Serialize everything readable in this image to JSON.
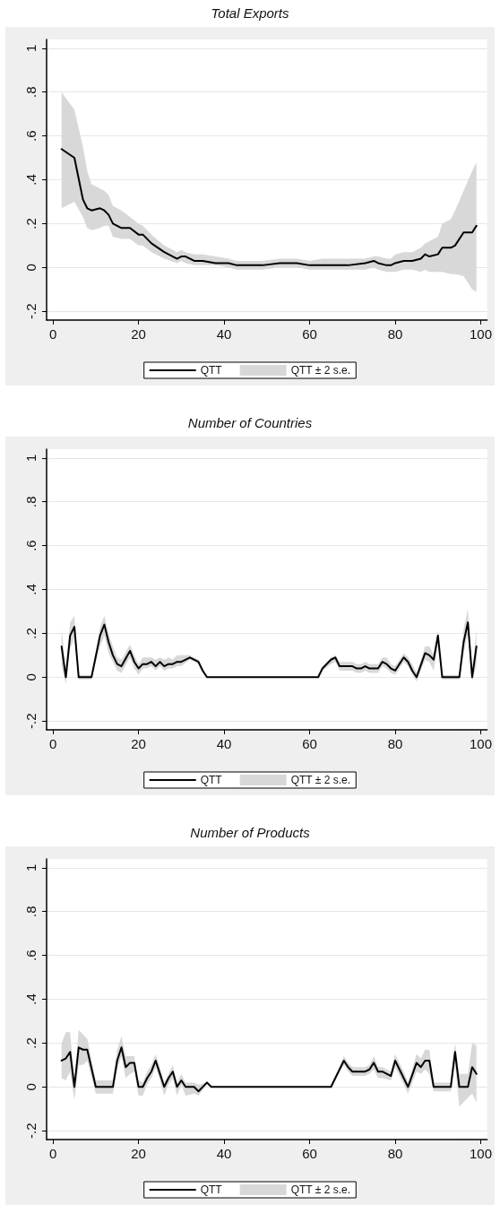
{
  "chart_data": [
    {
      "type": "line",
      "title": "Total Exports",
      "annotations": [
        "QTT ± 2 s.e."
      ],
      "xlim": [
        -1.5,
        101.5
      ],
      "xticks": [
        0,
        20,
        40,
        60,
        80,
        100
      ],
      "ylim": [
        -0.24,
        1.04
      ],
      "yticks": [
        {
          "value": -0.2,
          "label": "-.2"
        },
        {
          "value": 0,
          "label": "0"
        },
        {
          "value": 0.2,
          "label": ".2"
        },
        {
          "value": 0.4,
          "label": ".4"
        },
        {
          "value": 0.6,
          "label": ".6"
        },
        {
          "value": 0.8,
          "label": ".8"
        },
        {
          "value": 1,
          "label": "1"
        }
      ],
      "grid": "y",
      "legend": "bottom",
      "marker": "none",
      "line_style": "solid",
      "series": [
        {
          "name": "QTT",
          "color": "#000000",
          "x": [
            2,
            5,
            7,
            8,
            9,
            11,
            12,
            13,
            14,
            16,
            18,
            20,
            21,
            23,
            26,
            29,
            30,
            31,
            33,
            35,
            38,
            41,
            43,
            44,
            47,
            49,
            53,
            55,
            57,
            60,
            63,
            66,
            69,
            73,
            75,
            76,
            78,
            79,
            80,
            82,
            84,
            86,
            87,
            88,
            90,
            91,
            93,
            94,
            96,
            98,
            99
          ],
          "values": [
            0.54,
            0.5,
            0.31,
            0.27,
            0.26,
            0.27,
            0.26,
            0.24,
            0.2,
            0.18,
            0.18,
            0.15,
            0.15,
            0.11,
            0.07,
            0.04,
            0.05,
            0.05,
            0.03,
            0.03,
            0.02,
            0.02,
            0.01,
            0.01,
            0.01,
            0.01,
            0.02,
            0.02,
            0.02,
            0.01,
            0.01,
            0.01,
            0.01,
            0.02,
            0.03,
            0.02,
            0.01,
            0.01,
            0.02,
            0.03,
            0.03,
            0.04,
            0.06,
            0.05,
            0.06,
            0.09,
            0.09,
            0.1,
            0.16,
            0.16,
            0.19
          ],
          "upper": [
            0.8,
            0.72,
            0.55,
            0.44,
            0.38,
            0.36,
            0.35,
            0.33,
            0.28,
            0.26,
            0.23,
            0.2,
            0.19,
            0.15,
            0.1,
            0.07,
            0.08,
            0.07,
            0.06,
            0.06,
            0.05,
            0.04,
            0.03,
            0.03,
            0.03,
            0.03,
            0.04,
            0.04,
            0.04,
            0.03,
            0.04,
            0.04,
            0.04,
            0.04,
            0.05,
            0.05,
            0.04,
            0.04,
            0.06,
            0.07,
            0.07,
            0.09,
            0.11,
            0.12,
            0.14,
            0.2,
            0.22,
            0.26,
            0.35,
            0.44,
            0.48
          ],
          "lower": [
            0.27,
            0.3,
            0.23,
            0.18,
            0.17,
            0.18,
            0.19,
            0.19,
            0.14,
            0.13,
            0.13,
            0.1,
            0.1,
            0.07,
            0.04,
            0.02,
            0.03,
            0.02,
            0.01,
            0.01,
            0.01,
            0,
            -0.01,
            -0.01,
            -0.01,
            -0.01,
            0,
            0,
            0,
            -0.01,
            -0.01,
            -0.01,
            -0.01,
            -0.01,
            0,
            -0.01,
            -0.02,
            -0.02,
            -0.02,
            -0.01,
            -0.01,
            -0.02,
            -0.01,
            -0.02,
            -0.02,
            -0.02,
            -0.03,
            -0.03,
            -0.04,
            -0.1,
            -0.11
          ]
        }
      ]
    },
    {
      "type": "line",
      "title": "Number of Countries",
      "annotations": [
        "QTT ± 2 s.e."
      ],
      "xlim": [
        -1.5,
        101.5
      ],
      "xticks": [
        0,
        20,
        40,
        60,
        80,
        100
      ],
      "ylim": [
        -0.24,
        1.04
      ],
      "yticks": [
        {
          "value": -0.2,
          "label": "-.2"
        },
        {
          "value": 0,
          "label": "0"
        },
        {
          "value": 0.2,
          "label": ".2"
        },
        {
          "value": 0.4,
          "label": ".4"
        },
        {
          "value": 0.6,
          "label": ".6"
        },
        {
          "value": 0.8,
          "label": ".8"
        },
        {
          "value": 1,
          "label": "1"
        }
      ],
      "grid": "y",
      "legend": "bottom",
      "marker": "none",
      "line_style": "solid",
      "series": [
        {
          "name": "QTT",
          "color": "#000000",
          "x": [
            2,
            3,
            4,
            5,
            6,
            9,
            11,
            12,
            13,
            14,
            15,
            16,
            18,
            19,
            20,
            21,
            22,
            23,
            24,
            25,
            26,
            27,
            28,
            29,
            30,
            32,
            34,
            35,
            36,
            62,
            63,
            65,
            66,
            67,
            70,
            71,
            72,
            73,
            74,
            76,
            77,
            78,
            79,
            80,
            82,
            83,
            84,
            85,
            87,
            88,
            89,
            90,
            91,
            95,
            96,
            97,
            98,
            99
          ],
          "values": [
            0.14,
            0,
            0.19,
            0.23,
            0,
            0,
            0.19,
            0.24,
            0.16,
            0.1,
            0.06,
            0.05,
            0.12,
            0.07,
            0.04,
            0.06,
            0.06,
            0.07,
            0.05,
            0.07,
            0.05,
            0.06,
            0.06,
            0.07,
            0.07,
            0.09,
            0.07,
            0.03,
            0,
            0,
            0.04,
            0.08,
            0.09,
            0.05,
            0.05,
            0.04,
            0.04,
            0.05,
            0.04,
            0.04,
            0.07,
            0.06,
            0.04,
            0.03,
            0.09,
            0.07,
            0.03,
            0,
            0.11,
            0.1,
            0.08,
            0.19,
            0,
            0,
            0.16,
            0.25,
            0,
            0.14
          ],
          "upper": [
            0.22,
            0.04,
            0.25,
            0.28,
            0.01,
            0.01,
            0.23,
            0.28,
            0.2,
            0.14,
            0.09,
            0.08,
            0.15,
            0.1,
            0.06,
            0.09,
            0.09,
            0.09,
            0.08,
            0.09,
            0.08,
            0.09,
            0.08,
            0.1,
            0.1,
            0.1,
            0.08,
            0.04,
            0,
            0,
            0.05,
            0.09,
            0.1,
            0.07,
            0.07,
            0.06,
            0.06,
            0.07,
            0.06,
            0.06,
            0.09,
            0.09,
            0.06,
            0.05,
            0.11,
            0.09,
            0.06,
            0.02,
            0.14,
            0.14,
            0.1,
            0.21,
            0.01,
            0.01,
            0.22,
            0.31,
            0.02,
            0.22
          ],
          "lower": [
            0.05,
            -0.03,
            0.13,
            0.18,
            -0.01,
            -0.01,
            0.14,
            0.19,
            0.11,
            0.07,
            0.03,
            0.02,
            0.09,
            0.04,
            0.01,
            0.04,
            0.04,
            0.05,
            0.03,
            0.05,
            0.03,
            0.04,
            0.04,
            0.05,
            0.05,
            0.08,
            0.06,
            0.02,
            0,
            0,
            0.03,
            0.06,
            0.07,
            0.03,
            0.03,
            0.02,
            0.02,
            0.03,
            0.02,
            0.02,
            0.05,
            0.04,
            0.02,
            0.01,
            0.07,
            0.05,
            0.01,
            -0.02,
            0.08,
            0.07,
            0.03,
            0.16,
            -0.01,
            -0.01,
            0.11,
            0.2,
            -0.02,
            0.06
          ]
        }
      ]
    },
    {
      "type": "line",
      "title": "Number of Products",
      "annotations": [
        "QTT ± 2 s.e."
      ],
      "xlim": [
        -1.5,
        101.5
      ],
      "xticks": [
        0,
        20,
        40,
        60,
        80,
        100
      ],
      "ylim": [
        -0.24,
        1.04
      ],
      "yticks": [
        {
          "value": -0.2,
          "label": "-.2"
        },
        {
          "value": 0,
          "label": "0"
        },
        {
          "value": 0.2,
          "label": ".2"
        },
        {
          "value": 0.4,
          "label": ".4"
        },
        {
          "value": 0.6,
          "label": ".6"
        },
        {
          "value": 0.8,
          "label": ".8"
        },
        {
          "value": 1,
          "label": "1"
        }
      ],
      "grid": "y",
      "legend": "bottom",
      "marker": "none",
      "line_style": "solid",
      "series": [
        {
          "name": "QTT",
          "color": "#000000",
          "x": [
            2,
            3,
            4,
            5,
            6,
            7,
            8,
            10,
            14,
            15,
            16,
            17,
            18,
            19,
            20,
            21,
            22,
            23,
            24,
            25,
            26,
            27,
            28,
            29,
            30,
            31,
            33,
            34,
            36,
            37,
            65,
            66,
            67,
            68,
            69,
            70,
            71,
            72,
            73,
            74,
            75,
            76,
            77,
            79,
            80,
            81,
            82,
            83,
            85,
            86,
            87,
            88,
            89,
            93,
            94,
            95,
            97,
            98,
            99
          ],
          "values": [
            0.12,
            0.13,
            0.16,
            0,
            0.18,
            0.17,
            0.17,
            0,
            0,
            0.12,
            0.18,
            0.09,
            0.11,
            0.11,
            0,
            0,
            0.04,
            0.07,
            0.12,
            0.06,
            0,
            0.04,
            0.07,
            0,
            0.03,
            0,
            0,
            -0.02,
            0.02,
            0,
            0,
            0.04,
            0.08,
            0.12,
            0.09,
            0.07,
            0.07,
            0.07,
            0.07,
            0.08,
            0.11,
            0.07,
            0.07,
            0.05,
            0.12,
            0.08,
            0.04,
            0,
            0.11,
            0.09,
            0.12,
            0.12,
            0,
            0,
            0.16,
            0,
            0,
            0.09,
            0.06
          ],
          "upper": [
            0.2,
            0.25,
            0.25,
            0.03,
            0.26,
            0.24,
            0.22,
            0.03,
            0.03,
            0.17,
            0.23,
            0.14,
            0.14,
            0.14,
            0.03,
            0.02,
            0.07,
            0.1,
            0.15,
            0.09,
            0.02,
            0.06,
            0.1,
            0.02,
            0.06,
            0.02,
            0.02,
            0.01,
            0.02,
            0,
            0,
            0.05,
            0.09,
            0.14,
            0.11,
            0.09,
            0.09,
            0.09,
            0.09,
            0.1,
            0.14,
            0.09,
            0.09,
            0.07,
            0.15,
            0.11,
            0.07,
            0.02,
            0.15,
            0.13,
            0.17,
            0.17,
            0.02,
            0.02,
            0.2,
            0.06,
            0.06,
            0.2,
            0.19
          ],
          "lower": [
            0.04,
            0.03,
            0.07,
            -0.06,
            0.1,
            0.1,
            0.12,
            -0.03,
            -0.03,
            0.08,
            0.14,
            0.04,
            0.06,
            0.07,
            -0.04,
            -0.04,
            0.01,
            0.04,
            0.09,
            0.03,
            -0.04,
            0.01,
            0.04,
            -0.04,
            0.01,
            -0.04,
            -0.03,
            -0.04,
            0.01,
            0,
            0,
            0.03,
            0.07,
            0.1,
            0.07,
            0.05,
            0.05,
            0.05,
            0.05,
            0.06,
            0.08,
            0.04,
            0.04,
            0.03,
            0.09,
            0.05,
            0.01,
            -0.03,
            0.07,
            0.06,
            0.08,
            0.06,
            -0.02,
            -0.02,
            0.1,
            -0.09,
            -0.05,
            -0.03,
            -0.07
          ]
        }
      ]
    }
  ]
}
